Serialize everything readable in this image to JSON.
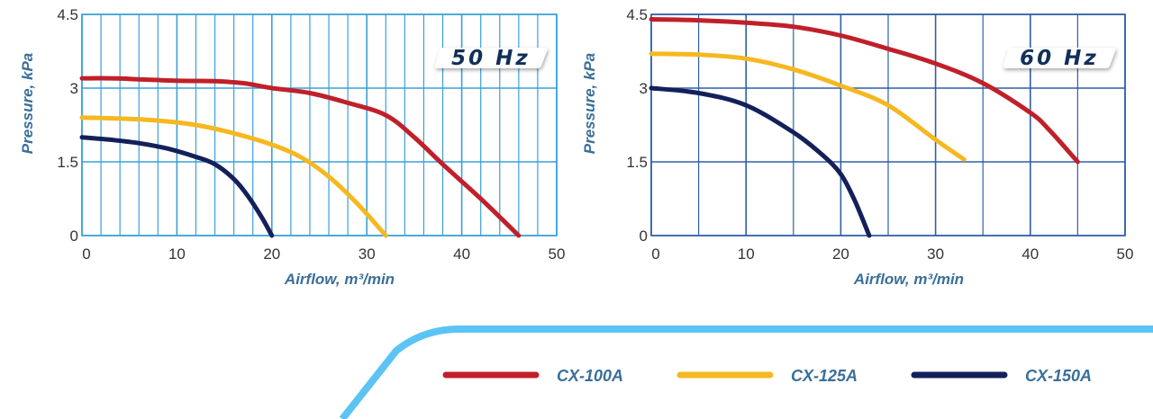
{
  "chart_data": [
    {
      "type": "line",
      "badge": "50 Hz",
      "xlabel": "Airflow, m³/min",
      "ylabel": "Pressure, kPa",
      "xlim": [
        0,
        50
      ],
      "ylim": [
        0,
        4.5
      ],
      "xticks": [
        "0",
        "10",
        "20",
        "30",
        "40",
        "50"
      ],
      "yticks": [
        "0",
        "1.5",
        "3",
        "4.5"
      ],
      "grid": true,
      "series": [
        {
          "name": "CX-100A",
          "color": "#c0202a",
          "points": [
            [
              0,
              3.2
            ],
            [
              3,
              3.2
            ],
            [
              6,
              3.18
            ],
            [
              10,
              3.15
            ],
            [
              14,
              3.14
            ],
            [
              17,
              3.1
            ],
            [
              20,
              3.0
            ],
            [
              24,
              2.9
            ],
            [
              28,
              2.7
            ],
            [
              32,
              2.45
            ],
            [
              35,
              2.0
            ],
            [
              38,
              1.45
            ],
            [
              42,
              0.75
            ],
            [
              46,
              0
            ]
          ]
        },
        {
          "name": "CX-125A",
          "color": "#f5b820",
          "points": [
            [
              0,
              2.4
            ],
            [
              4,
              2.38
            ],
            [
              8,
              2.34
            ],
            [
              12,
              2.25
            ],
            [
              16,
              2.08
            ],
            [
              20,
              1.85
            ],
            [
              23,
              1.6
            ],
            [
              26,
              1.2
            ],
            [
              29,
              0.65
            ],
            [
              32,
              0
            ]
          ]
        },
        {
          "name": "CX-150A",
          "color": "#14205a",
          "points": [
            [
              0,
              2.0
            ],
            [
              3,
              1.95
            ],
            [
              6,
              1.88
            ],
            [
              9,
              1.77
            ],
            [
              12,
              1.6
            ],
            [
              14,
              1.45
            ],
            [
              16,
              1.15
            ],
            [
              17.5,
              0.8
            ],
            [
              19,
              0.35
            ],
            [
              20,
              0
            ]
          ]
        }
      ]
    },
    {
      "type": "line",
      "badge": "60 Hz",
      "xlabel": "Airflow, m³/min",
      "ylabel": "Pressure, kPa",
      "xlim": [
        0,
        50
      ],
      "ylim": [
        0,
        4.5
      ],
      "xticks": [
        "0",
        "10",
        "20",
        "30",
        "40",
        "50"
      ],
      "yticks": [
        "0",
        "1.5",
        "3",
        "4.5"
      ],
      "grid": true,
      "series": [
        {
          "name": "CX-100A",
          "color": "#c0202a",
          "points": [
            [
              0,
              4.4
            ],
            [
              5,
              4.38
            ],
            [
              10,
              4.33
            ],
            [
              15,
              4.25
            ],
            [
              20,
              4.07
            ],
            [
              25,
              3.8
            ],
            [
              30,
              3.5
            ],
            [
              35,
              3.1
            ],
            [
              40,
              2.5
            ],
            [
              42,
              2.15
            ],
            [
              45,
              1.5
            ]
          ]
        },
        {
          "name": "CX-125A",
          "color": "#f5b820",
          "points": [
            [
              0,
              3.7
            ],
            [
              5,
              3.68
            ],
            [
              10,
              3.6
            ],
            [
              15,
              3.38
            ],
            [
              20,
              3.05
            ],
            [
              25,
              2.65
            ],
            [
              30,
              1.95
            ],
            [
              33,
              1.55
            ]
          ]
        },
        {
          "name": "CX-150A",
          "color": "#14205a",
          "points": [
            [
              0,
              3.0
            ],
            [
              5,
              2.9
            ],
            [
              10,
              2.65
            ],
            [
              15,
              2.1
            ],
            [
              18,
              1.65
            ],
            [
              20,
              1.25
            ],
            [
              21.5,
              0.7
            ],
            [
              23,
              0
            ]
          ]
        }
      ]
    }
  ],
  "legend": [
    {
      "label": "CX-100A",
      "color": "#c0202a"
    },
    {
      "label": "CX-125A",
      "color": "#f5b820"
    },
    {
      "label": "CX-150A",
      "color": "#14205a"
    }
  ],
  "colors": {
    "grid_left": "#3aa0d8",
    "grid_right": "#2f5fa8",
    "accent_band": "#5bc4f5",
    "axis_text": "#3a6f99"
  }
}
